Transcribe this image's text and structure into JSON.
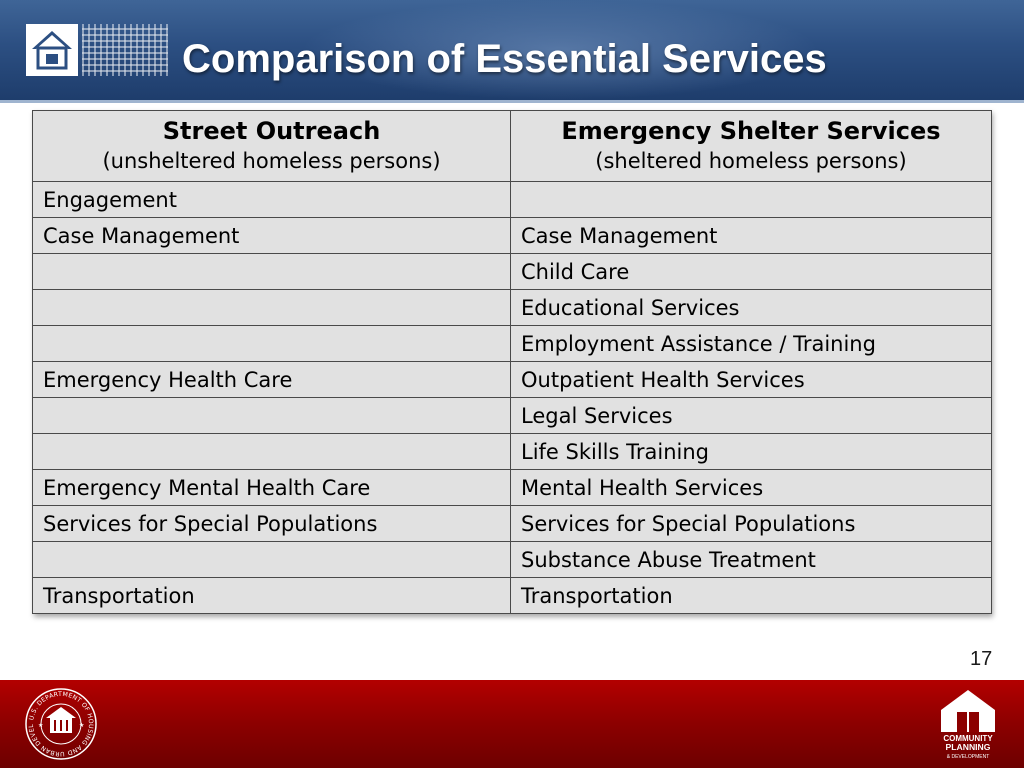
{
  "header": {
    "title": "Comparison of Essential Services",
    "logo_icon": "house-grid-logo-icon"
  },
  "table": {
    "columns": [
      {
        "title": "Street Outreach",
        "subtitle": "(unsheltered homeless persons)"
      },
      {
        "title": "Emergency Shelter Services",
        "subtitle": "(sheltered homeless persons)"
      }
    ],
    "rows": [
      [
        "Engagement",
        ""
      ],
      [
        "Case Management",
        "Case Management"
      ],
      [
        "",
        "Child Care"
      ],
      [
        "",
        "Educational Services"
      ],
      [
        "",
        "Employment Assistance / Training"
      ],
      [
        "Emergency Health Care",
        "Outpatient Health Services"
      ],
      [
        "",
        "Legal Services"
      ],
      [
        "",
        "Life Skills Training"
      ],
      [
        "Emergency Mental Health Care",
        "Mental Health Services"
      ],
      [
        "Services for Special Populations",
        "Services for Special Populations"
      ],
      [
        "",
        "Substance Abuse Treatment"
      ],
      [
        "Transportation",
        "Transportation"
      ]
    ]
  },
  "page_number": "17",
  "footer": {
    "left_logo": "hud-seal",
    "left_logo_text": "U.S. DEPARTMENT OF HOUSING AND URBAN DEVELOPMENT",
    "right_logo": "community-planning-development-logo",
    "right_logo_text": [
      "COMMUNITY",
      "PLANNING",
      "& DEVELOPMENT"
    ]
  },
  "colors": {
    "header_blue": "#2c4f82",
    "footer_red": "#8c0000",
    "table_fill": "#e1e1e1",
    "table_border": "#4a4a4a"
  }
}
